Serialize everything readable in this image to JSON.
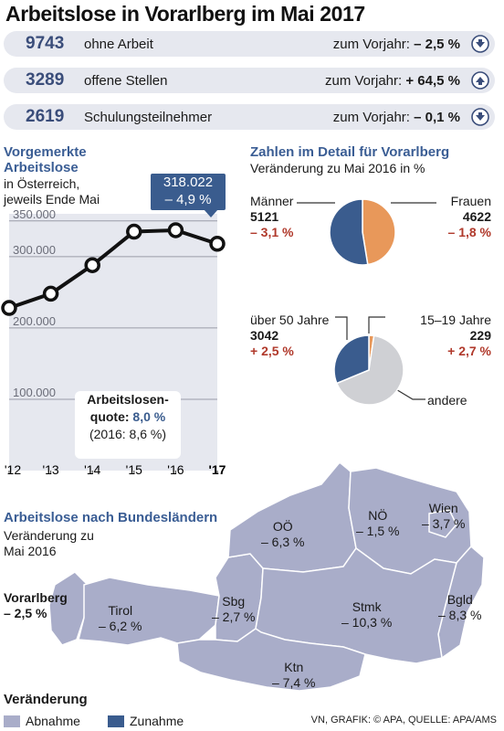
{
  "title": "Arbeitslose in Vorarlberg im Mai 2017",
  "summary": [
    {
      "number": "9743",
      "label": "ohne Arbeit",
      "compare_prefix": "zum Vorjahr:",
      "compare_value": "– 2,5 %",
      "direction": "down"
    },
    {
      "number": "3289",
      "label": "offene Stellen",
      "compare_prefix": "zum Vorjahr:",
      "compare_value": "+ 64,5 %",
      "direction": "up"
    },
    {
      "number": "2619",
      "label": "Schulungsteilnehmer",
      "compare_prefix": "zum Vorjahr:",
      "compare_value": "– 0,1 %",
      "direction": "down"
    }
  ],
  "colors": {
    "dark_blue": "#3a5c8e",
    "light_blue": "#a9adc9",
    "orange": "#e8985a",
    "grey": "#cfd0d4",
    "red": "#b0392b",
    "bar_bg": "#e6e8ef"
  },
  "line_section": {
    "title_line1": "Vorgemerkte",
    "title_line2": "Arbeitslose",
    "sub_line1": "in Österreich,",
    "sub_line2": "jeweils Ende Mai",
    "callout_value": "318.022",
    "callout_change": "– 4,9 %",
    "quote_line1": "Arbeitslosen-",
    "quote_prefix": "quote:",
    "quote_value": "8,0 %",
    "quote_prev": "(2016: 8,6 %)"
  },
  "chart_data": [
    {
      "type": "line",
      "x": [
        "'12",
        "'13",
        "'14",
        "'15",
        "'16",
        "'17"
      ],
      "values": [
        228000,
        248000,
        288000,
        335000,
        337000,
        318022
      ],
      "yticks": [
        100000,
        200000,
        300000,
        350000
      ],
      "ytick_labels": [
        "100.000",
        "200.000",
        "300.000",
        "350.000"
      ],
      "ylim": [
        0,
        360000
      ],
      "grid": true
    },
    {
      "type": "pie",
      "labels": [
        "Frauen",
        "Männer"
      ],
      "values": [
        4622,
        5121
      ],
      "changes": [
        "– 1,8 %",
        "– 3,1 %"
      ],
      "colors": [
        "#e8985a",
        "#3a5c8e"
      ]
    },
    {
      "type": "pie",
      "labels": [
        "15–19 Jahre",
        "andere",
        "über 50 Jahre"
      ],
      "values": [
        229,
        6472,
        3042
      ],
      "changes": [
        "+ 2,7 %",
        "",
        "+ 2,5 %"
      ],
      "colors": [
        "#e8985a",
        "#cfd0d4",
        "#3a5c8e"
      ]
    }
  ],
  "detail": {
    "title": "Zahlen im Detail für Vorarlberg",
    "subtitle": "Veränderung zu Mai 2016 in %",
    "men_label": "Männer",
    "men_value": "5121",
    "men_change": "– 3,1 %",
    "women_label": "Frauen",
    "women_value": "4622",
    "women_change": "– 1,8 %",
    "over50_label": "über 50 Jahre",
    "over50_value": "3042",
    "over50_change": "+ 2,5 %",
    "youth_label": "15–19 Jahre",
    "youth_value": "229",
    "youth_change": "+ 2,7 %",
    "other_label": "andere"
  },
  "map": {
    "title": "Arbeitslose nach Bundesländern",
    "sub_line1": "Veränderung zu",
    "sub_line2": "Mai 2016",
    "regions": [
      {
        "name": "Vorarlberg",
        "change": "– 2,5 %"
      },
      {
        "name": "Tirol",
        "change": "– 6,2 %"
      },
      {
        "name": "Sbg",
        "change": "– 2,7 %"
      },
      {
        "name": "OÖ",
        "change": "– 6,3 %"
      },
      {
        "name": "NÖ",
        "change": "– 1,5 %"
      },
      {
        "name": "Wien",
        "change": "– 3,7 %"
      },
      {
        "name": "Bgld",
        "change": "– 8,3 %"
      },
      {
        "name": "Stmk",
        "change": "– 10,3 %"
      },
      {
        "name": "Ktn",
        "change": "– 7,4 %"
      }
    ]
  },
  "legend": {
    "title": "Veränderung",
    "decrease": "Abnahme",
    "increase": "Zunahme"
  },
  "source": "VN, GRAFIK: © APA, QUELLE: APA/AMS"
}
